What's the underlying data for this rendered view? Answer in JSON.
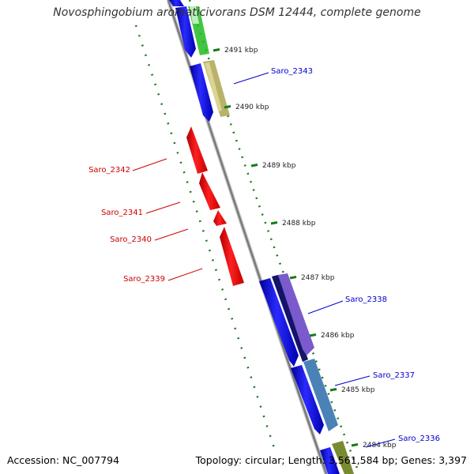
{
  "title": "Novosphingobium aromaticivorans DSM 12444, complete genome",
  "footer": {
    "accession": "Accession: NC_007794",
    "summary": "Topology: circular; Length: 3,561,584 bp; Genes: 3,397"
  },
  "ticks": [
    "2491 kbp",
    "2490 kbp",
    "2489 kbp",
    "2488 kbp",
    "2487 kbp",
    "2486 kbp",
    "2485 kbp",
    "2484 kbp"
  ],
  "genes": [
    "Saro_2343",
    "Saro_2342",
    "Saro_2341",
    "Saro_2340",
    "Saro_2339",
    "Saro_2338",
    "Saro_2337",
    "Saro_2336"
  ],
  "colors": {
    "forward_label": "#0000cc",
    "reverse_label": "#cc0000",
    "cds_forward": "#1a1aee",
    "cds_reverse": "#ee1111",
    "tick": "#1a7a1a",
    "backbone": "#8a8a8a"
  }
}
